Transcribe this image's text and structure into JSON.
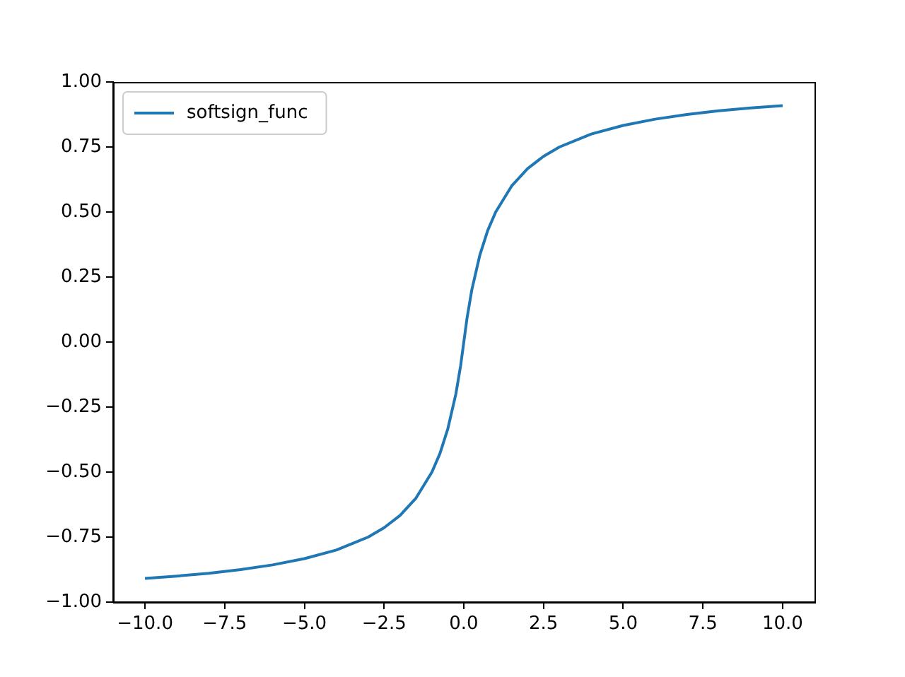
{
  "chart_data": {
    "type": "line",
    "x": [
      -10,
      -9,
      -8,
      -7,
      -6,
      -5,
      -4,
      -3,
      -2.5,
      -2,
      -1.5,
      -1,
      -0.75,
      -0.5,
      -0.25,
      -0.1,
      0,
      0.1,
      0.25,
      0.5,
      0.75,
      1,
      1.5,
      2,
      2.5,
      3,
      4,
      5,
      6,
      7,
      8,
      9,
      10
    ],
    "series": [
      {
        "name": "softsign_func",
        "color": "#1f77b4",
        "values": [
          -0.909,
          -0.9,
          -0.889,
          -0.875,
          -0.857,
          -0.833,
          -0.8,
          -0.75,
          -0.714,
          -0.667,
          -0.6,
          -0.5,
          -0.429,
          -0.333,
          -0.2,
          -0.091,
          0,
          0.091,
          0.2,
          0.333,
          0.429,
          0.5,
          0.6,
          0.667,
          0.714,
          0.75,
          0.8,
          0.833,
          0.857,
          0.875,
          0.889,
          0.9,
          0.909
        ]
      }
    ],
    "xlim": [
      -11,
      11
    ],
    "xticks": [
      {
        "value": -10,
        "label": "−10.0"
      },
      {
        "value": -7.5,
        "label": "−7.5"
      },
      {
        "value": -5,
        "label": "−5.0"
      },
      {
        "value": -2.5,
        "label": "−2.5"
      },
      {
        "value": 0,
        "label": "0.0"
      },
      {
        "value": 2.5,
        "label": "2.5"
      },
      {
        "value": 5,
        "label": "5.0"
      },
      {
        "value": 7.5,
        "label": "7.5"
      },
      {
        "value": 10,
        "label": "10.0"
      }
    ],
    "ylim": [
      -1,
      1
    ],
    "yticks": [
      {
        "value": -1,
        "label": "−1.00"
      },
      {
        "value": -0.75,
        "label": "−0.75"
      },
      {
        "value": -0.5,
        "label": "−0.50"
      },
      {
        "value": -0.25,
        "label": "−0.25"
      },
      {
        "value": 0,
        "label": "0.00"
      },
      {
        "value": 0.25,
        "label": "0.25"
      },
      {
        "value": 0.5,
        "label": "0.50"
      },
      {
        "value": 0.75,
        "label": "0.75"
      },
      {
        "value": 1,
        "label": "1.00"
      }
    ],
    "grid": false,
    "legend": "top left",
    "marker": "none",
    "line_style": "solid"
  }
}
